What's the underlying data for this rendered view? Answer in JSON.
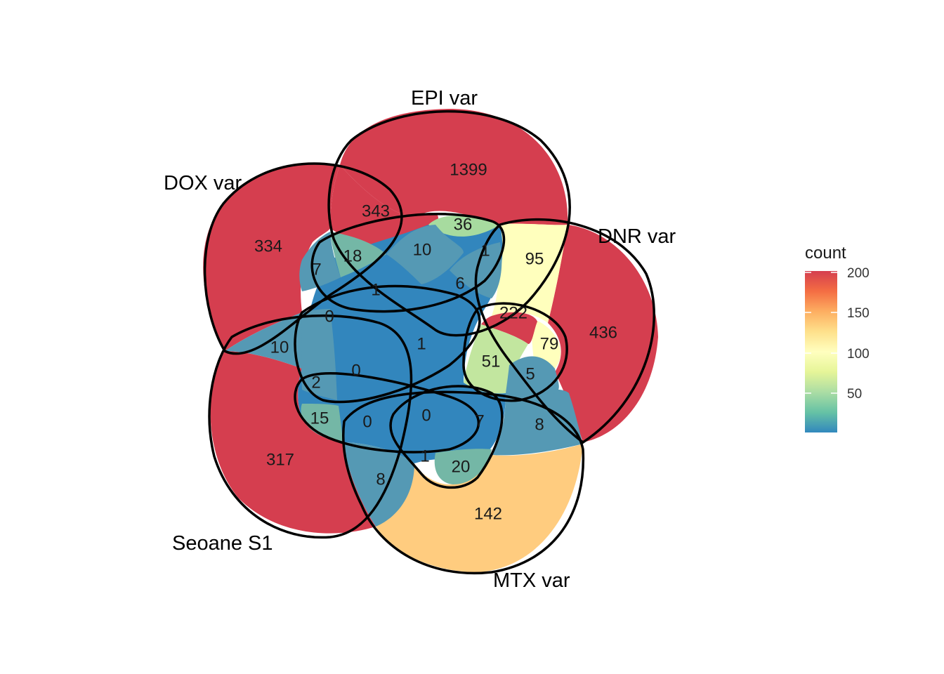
{
  "sets": [
    {
      "id": "epi",
      "label": "EPI var"
    },
    {
      "id": "dox",
      "label": "DOX var"
    },
    {
      "id": "dnr",
      "label": "DNR var"
    },
    {
      "id": "seoane",
      "label": "Seoane S1"
    },
    {
      "id": "mtx",
      "label": "MTX var"
    }
  ],
  "regions": [
    {
      "id": "epi-only",
      "count": "1399"
    },
    {
      "id": "dox-epi",
      "count": "343"
    },
    {
      "id": "dox-only",
      "count": "334"
    },
    {
      "id": "epi-dnr",
      "count": "36"
    },
    {
      "id": "dnr-only-upper",
      "count": "95"
    },
    {
      "id": "dnr-only",
      "count": "436"
    },
    {
      "id": "r-18",
      "count": "18"
    },
    {
      "id": "r-10a",
      "count": "10"
    },
    {
      "id": "r-1a",
      "count": "1"
    },
    {
      "id": "r-7a",
      "count": "7"
    },
    {
      "id": "r-1b",
      "count": "1"
    },
    {
      "id": "r-6",
      "count": "6"
    },
    {
      "id": "r-222",
      "count": "222"
    },
    {
      "id": "r-0a",
      "count": "0"
    },
    {
      "id": "r-10b",
      "count": "10"
    },
    {
      "id": "center",
      "count": "1"
    },
    {
      "id": "r-79",
      "count": "79"
    },
    {
      "id": "r-51",
      "count": "51"
    },
    {
      "id": "r-0b",
      "count": "0"
    },
    {
      "id": "r-2",
      "count": "2"
    },
    {
      "id": "r-5",
      "count": "5"
    },
    {
      "id": "r-15",
      "count": "15"
    },
    {
      "id": "r-0c",
      "count": "0"
    },
    {
      "id": "r-0d",
      "count": "0"
    },
    {
      "id": "r-7b",
      "count": "7"
    },
    {
      "id": "r-8a",
      "count": "8"
    },
    {
      "id": "seoane-only",
      "count": "317"
    },
    {
      "id": "r-1c",
      "count": "1"
    },
    {
      "id": "r-20",
      "count": "20"
    },
    {
      "id": "r-8b",
      "count": "8"
    },
    {
      "id": "mtx-only",
      "count": "142"
    }
  ],
  "legend": {
    "title": "count",
    "ticks": [
      "200",
      "150",
      "100",
      "50"
    ],
    "palette": [
      "#3288bd",
      "#66c2a5",
      "#abdda4",
      "#e6f598",
      "#ffffbf",
      "#fee08b",
      "#fdae61",
      "#f46d43",
      "#d53e4f"
    ]
  },
  "colors": {
    "high": "#d53e4f",
    "dark_blue": "#3286bd",
    "mid_blue": "#5599b4",
    "teal": "#74b7a6",
    "light_green": "#c2e69f",
    "pale_green": "#a7db9f",
    "pale_yellow": "#ffffbd",
    "orange": "#ffcc7f",
    "outline": "#000000"
  }
}
